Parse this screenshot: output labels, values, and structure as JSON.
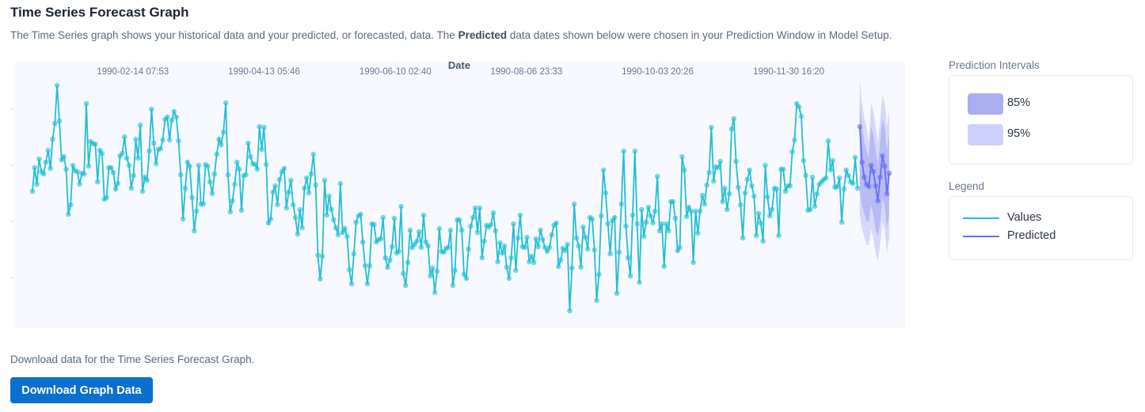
{
  "header": {
    "title": "Time Series Forecast Graph",
    "description_before": "The Time Series graph shows your historical data and your predicted, or forecasted, data. The ",
    "description_bold": "Predicted",
    "description_after": " data dates shown below were chosen in your Prediction Window in Model Setup."
  },
  "prediction_intervals": {
    "label": "Prediction Intervals",
    "items": [
      {
        "label": "85%",
        "color": "#aaaef0"
      },
      {
        "label": "95%",
        "color": "#cdd0fa"
      }
    ]
  },
  "legend": {
    "label": "Legend",
    "items": [
      {
        "label": "Values",
        "color": "#1fbfd6"
      },
      {
        "label": "Predicted",
        "color": "#636efa"
      }
    ]
  },
  "download": {
    "text": "Download data for the Time Series Forecast Graph.",
    "button_label": "Download Graph Data"
  },
  "chart_data": {
    "type": "line",
    "xlabel": "Date",
    "x_axis_position": "top",
    "xlim": [
      "1989-12-24",
      "1991-01-21"
    ],
    "ylim": [
      -1.5,
      32.2
    ],
    "grid": true,
    "x_ticks": [
      "1990-02-14 07:53",
      "1990-04-13 05:46",
      "1990-06-10 02:40",
      "1990-08-06 23:33",
      "1990-10-03 20:26",
      "1990-11-30 16:20"
    ],
    "series": [
      {
        "name": "Values",
        "color": "#1fbfd6",
        "date_first": "1990-01-01",
        "date_last": "1990-12-31",
        "frequency": "daily",
        "values": [
          15.8,
          18.8,
          16.7,
          19.9,
          18.3,
          18.0,
          19.5,
          21.0,
          18.7,
          22.4,
          24.4,
          29.2,
          24.7,
          19.8,
          20.2,
          18.6,
          12.9,
          14.1,
          19.1,
          18.4,
          18.3,
          16.7,
          18.1,
          18.0,
          26.9,
          19.0,
          22.1,
          21.8,
          21.8,
          17.0,
          21.0,
          20.6,
          14.8,
          15.0,
          18.8,
          18.8,
          18.2,
          16.1,
          16.8,
          20.3,
          20.6,
          22.7,
          20.0,
          19.1,
          16.2,
          17.8,
          22.4,
          20.0,
          24.2,
          15.8,
          17.6,
          17.2,
          20.9,
          26.2,
          21.9,
          19.3,
          21.1,
          21.2,
          22.3,
          24.9,
          25.2,
          22.3,
          24.8,
          25.9,
          25.2,
          22.2,
          17.9,
          12.3,
          16.2,
          19.5,
          19.0,
          15.0,
          10.8,
          13.3,
          19.1,
          14.2,
          14.2,
          19.2,
          19.0,
          17.0,
          15.5,
          18.0,
          20.5,
          22.4,
          21.7,
          23.3,
          27.0,
          17.9,
          13.2,
          14.6,
          16.7,
          19.5,
          18.6,
          13.4,
          17.8,
          17.9,
          21.9,
          20.2,
          19.3,
          19.2,
          18.6,
          24.0,
          21.1,
          23.9,
          19.2,
          11.8,
          12.3,
          15.7,
          16.5,
          14.1,
          17.3,
          18.3,
          18.7,
          13.7,
          15.7,
          17.2,
          14.1,
          12.5,
          10.4,
          13.5,
          11.2,
          16.2,
          17.5,
          15.6,
          18.0,
          20.5,
          16.6,
          7.7,
          4.7,
          7.6,
          17.2,
          12.8,
          15.2,
          13.5,
          12.2,
          11.2,
          10.3,
          16.8,
          10.6,
          11.1,
          10.1,
          5.9,
          4.1,
          7.9,
          11.9,
          12.7,
          12.9,
          9.4,
          6.4,
          4.1,
          6.4,
          11.7,
          11.6,
          9.4,
          9.7,
          9.8,
          12.5,
          7.4,
          6.2,
          7.1,
          8.8,
          12.4,
          8.0,
          8.2,
          13.9,
          5.4,
          3.9,
          6.8,
          10.9,
          8.7,
          9.1,
          9.5,
          10.7,
          8.7,
          12.8,
          9.4,
          8.9,
          5.1,
          6.1,
          3.0,
          5.7,
          11.1,
          8.2,
          8.1,
          8.6,
          8.7,
          10.9,
          3.9,
          5.8,
          12.2,
          12.2,
          10.9,
          5.3,
          4.8,
          8.5,
          11.4,
          12.5,
          13.7,
          10.6,
          13.7,
          7.4,
          9.5,
          11.5,
          11.3,
          11.6,
          13.1,
          10.8,
          6.9,
          9.3,
          8.0,
          8.9,
          6.2,
          4.8,
          7.4,
          11.7,
          5.8,
          9.9,
          12.8,
          8.8,
          8.7,
          10.0,
          6.9,
          7.6,
          6.8,
          9.8,
          8.8,
          10.9,
          9.7,
          8.7,
          8.2,
          8.7,
          10.3,
          11.5,
          11.8,
          6.3,
          7.1,
          8.6,
          8.3,
          9.1,
          0.7,
          6.1,
          14.2,
          9.9,
          8.9,
          6.2,
          11.3,
          10.0,
          8.5,
          12.5,
          12.3,
          8.4,
          2.0,
          5.3,
          12.7,
          18.5,
          15.6,
          11.7,
          7.9,
          12.1,
          12.5,
          2.9,
          8.1,
          14.2,
          20.9,
          11.4,
          7.4,
          5.1,
          12.8,
          20.9,
          11.7,
          4.3,
          13.5,
          10.1,
          11.9,
          13.8,
          12.7,
          11.8,
          13.3,
          17.7,
          10.8,
          11.7,
          6.3,
          11.7,
          10.8,
          14.5,
          14.5,
          12.4,
          8.3,
          8.7,
          20.2,
          18.5,
          12.6,
          13.8,
          13.3,
          6.8,
          13.3,
          10.5,
          13.3,
          15.3,
          14.2,
          16.6,
          18.2,
          23.9,
          17.1,
          18.9,
          18.8,
          19.6,
          14.5,
          16.2,
          13.5,
          15.5,
          23.7,
          25.0,
          19.6,
          16.3,
          14.1,
          9.9,
          15.6,
          17.3,
          18.5,
          16.5,
          15.2,
          10.2,
          13.0,
          11.8,
          9.5,
          19.1,
          15.1,
          12.7,
          13.5,
          16.2,
          16.1,
          10.2,
          18.6,
          18.6,
          15.8,
          16.5,
          16.5,
          20.8,
          22.3,
          26.9,
          26.5,
          25.3,
          19.7,
          17.8,
          13.4,
          13.5,
          17.6,
          13.9,
          15.5,
          16.7,
          17.0,
          17.3,
          17.5,
          22.2,
          18.5,
          19.7,
          16.3,
          16.4,
          17.5,
          11.9,
          16.1,
          18.5,
          17.8,
          17.0,
          16.8,
          20.1,
          16.2
        ]
      },
      {
        "name": "Predicted",
        "color": "#636efa",
        "date_first": "1991-01-01",
        "date_last": "1991-01-14",
        "frequency": "daily",
        "values": [
          24.0,
          19.5,
          17.6,
          16.7,
          16.4,
          19.1,
          18.3,
          16.5,
          14.6,
          17.6,
          20.3,
          19.0,
          15.5,
          18.1
        ],
        "interval_85": {
          "upper": [
            27,
            24,
            22,
            21,
            20,
            24,
            23,
            21,
            19,
            22,
            25,
            24,
            21,
            23
          ],
          "lower": [
            16,
            14,
            13,
            12,
            12,
            14,
            13,
            11,
            10,
            12,
            15,
            14,
            11,
            13
          ]
        },
        "interval_95": {
          "upper": [
            30,
            27,
            25,
            24,
            22,
            27,
            26,
            24,
            22,
            25,
            28,
            27,
            24,
            26
          ],
          "lower": [
            13,
            11,
            10,
            9,
            9,
            11,
            10,
            8,
            7,
            9,
            12,
            11,
            8,
            10
          ]
        }
      }
    ]
  }
}
